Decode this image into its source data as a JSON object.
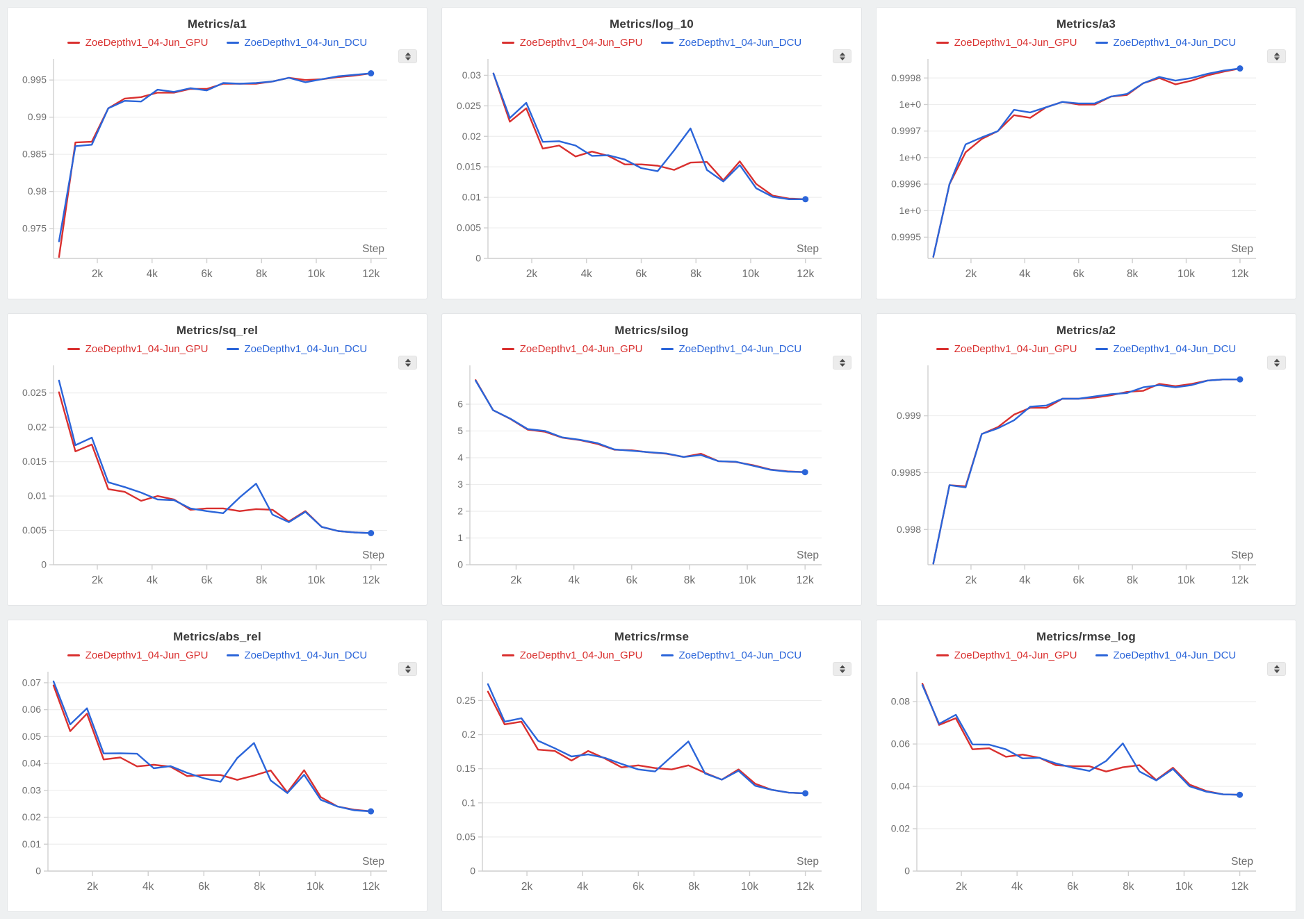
{
  "app": {
    "background": "#eef0f1",
    "panel_background": "#ffffff"
  },
  "colors": {
    "gpu": "#d9302f",
    "dcu": "#2b65d9",
    "grid_line": "#ededed",
    "axis_line": "#cfcfcf",
    "tick_label": "#6e6e6e",
    "title": "#3a3a3a",
    "sorter_glyph": "#4a4a4a",
    "sorter_bg": "#ececec"
  },
  "icons": {
    "panel_handle": "up-down-arrows-icon"
  },
  "legend": {
    "items": [
      {
        "key": "gpu",
        "label": "ZoeDepthv1_04-Jun_GPU",
        "color": "#d9302f"
      },
      {
        "key": "dcu",
        "label": "ZoeDepthv1_04-Jun_DCU",
        "color": "#2b65d9"
      }
    ]
  },
  "xaxis": {
    "label": "Step",
    "range": [
      400,
      12260
    ],
    "tick_values": [
      2000,
      4000,
      6000,
      8000,
      10000,
      12000
    ],
    "tick_labels": [
      "2k",
      "4k",
      "6k",
      "8k",
      "10k",
      "12k"
    ]
  },
  "steps": [
    600,
    1200,
    1800,
    2400,
    3000,
    3600,
    4200,
    4800,
    5400,
    6000,
    6600,
    7200,
    7800,
    8400,
    9000,
    9600,
    10200,
    10800,
    11400,
    12000
  ],
  "chart_data": [
    {
      "type": "line",
      "title": "Metrics/a1",
      "xlabel": "Step",
      "grid": "horizontal",
      "legend_position": "top",
      "ylim": [
        0.971,
        0.9967
      ],
      "ytick_values": [
        0.975,
        0.98,
        0.985,
        0.99,
        0.995
      ],
      "ytick_labels": [
        "0.975",
        "0.98",
        "0.985",
        "0.99",
        "0.995"
      ],
      "series": [
        {
          "name": "ZoeDepthv1_04-Jun_GPU",
          "color": "#d9302f",
          "values": [
            0.9712,
            0.9866,
            0.9867,
            0.9912,
            0.9925,
            0.9927,
            0.9933,
            0.9933,
            0.9938,
            0.9938,
            0.9945,
            0.9945,
            0.9945,
            0.9948,
            0.9953,
            0.995,
            0.9951,
            0.9954,
            0.9956,
            0.9959
          ]
        },
        {
          "name": "ZoeDepthv1_04-Jun_DCU",
          "color": "#2b65d9",
          "values": [
            0.9733,
            0.9861,
            0.9863,
            0.9912,
            0.9922,
            0.9921,
            0.9937,
            0.9934,
            0.9939,
            0.9936,
            0.9946,
            0.9945,
            0.9946,
            0.9948,
            0.9953,
            0.9947,
            0.9951,
            0.9955,
            0.9957,
            0.9959
          ]
        }
      ],
      "end_dot_color": "#2b65d9"
    },
    {
      "type": "line",
      "title": "Metrics/log_10",
      "xlabel": "Step",
      "grid": "horizontal",
      "legend_position": "top",
      "ylim": [
        0,
        0.0313
      ],
      "ytick_values": [
        0,
        0.005,
        0.01,
        0.015,
        0.02,
        0.025,
        0.03
      ],
      "ytick_labels": [
        "0",
        "0.005",
        "0.01",
        "0.015",
        "0.02",
        "0.025",
        "0.03"
      ],
      "series": [
        {
          "name": "ZoeDepthv1_04-Jun_GPU",
          "color": "#d9302f",
          "values": [
            0.0303,
            0.0224,
            0.0246,
            0.018,
            0.0185,
            0.0167,
            0.0175,
            0.0168,
            0.0154,
            0.0154,
            0.0152,
            0.0145,
            0.0157,
            0.0158,
            0.0128,
            0.0159,
            0.0122,
            0.0103,
            0.0098,
            0.0097
          ]
        },
        {
          "name": "ZoeDepthv1_04-Jun_DCU",
          "color": "#2b65d9",
          "values": [
            0.0303,
            0.023,
            0.0255,
            0.0191,
            0.0192,
            0.0185,
            0.0168,
            0.0169,
            0.0162,
            0.0148,
            0.0143,
            0.0177,
            0.0213,
            0.0145,
            0.0126,
            0.0153,
            0.0115,
            0.0101,
            0.0097,
            0.0097
          ]
        }
      ],
      "end_dot_color": "#2b65d9"
    },
    {
      "type": "line",
      "title": "Metrics/a3",
      "xlabel": "Step",
      "grid": "horizontal",
      "legend_position": "top",
      "ylim": [
        0.99946,
        0.99982
      ],
      "ytick_values": [
        0.9995,
        0.99955,
        0.9996,
        0.99965,
        0.9997,
        0.99975,
        0.9998
      ],
      "ytick_labels": [
        "0.9995",
        "1e+0",
        "0.9996",
        "1e+0",
        "0.9997",
        "1e+0",
        "0.9998"
      ],
      "series": [
        {
          "name": "ZoeDepthv1_04-Jun_GPU",
          "color": "#d9302f",
          "values": [
            0.999463,
            0.9996,
            0.99966,
            0.999685,
            0.9997,
            0.99973,
            0.999725,
            0.999745,
            0.999755,
            0.99975,
            0.99975,
            0.999765,
            0.999768,
            0.99979,
            0.9998,
            0.999788,
            0.999795,
            0.999805,
            0.999812,
            0.999818
          ]
        },
        {
          "name": "ZoeDepthv1_04-Jun_DCU",
          "color": "#2b65d9",
          "values": [
            0.999463,
            0.9996,
            0.999675,
            0.999688,
            0.9997,
            0.99974,
            0.999735,
            0.999745,
            0.999755,
            0.999752,
            0.999752,
            0.999765,
            0.99977,
            0.99979,
            0.999802,
            0.999795,
            0.9998,
            0.999808,
            0.999814,
            0.999818
          ]
        }
      ],
      "end_dot_color": "#2b65d9"
    },
    {
      "type": "line",
      "title": "Metrics/sq_rel",
      "xlabel": "Step",
      "grid": "horizontal",
      "legend_position": "top",
      "ylim": [
        0,
        0.0278
      ],
      "ytick_values": [
        0,
        0.005,
        0.01,
        0.015,
        0.02,
        0.025
      ],
      "ytick_labels": [
        "0",
        "0.005",
        "0.01",
        "0.015",
        "0.02",
        "0.025"
      ],
      "series": [
        {
          "name": "ZoeDepthv1_04-Jun_GPU",
          "color": "#d9302f",
          "values": [
            0.0251,
            0.0165,
            0.0175,
            0.011,
            0.0106,
            0.0093,
            0.01,
            0.0095,
            0.008,
            0.0082,
            0.0082,
            0.0078,
            0.0081,
            0.008,
            0.0063,
            0.0078,
            0.0055,
            0.0049,
            0.0047,
            0.0046
          ]
        },
        {
          "name": "ZoeDepthv1_04-Jun_DCU",
          "color": "#2b65d9",
          "values": [
            0.0268,
            0.0174,
            0.0185,
            0.012,
            0.0113,
            0.0105,
            0.0095,
            0.0094,
            0.0082,
            0.0078,
            0.0075,
            0.0098,
            0.0118,
            0.0073,
            0.0062,
            0.0077,
            0.0055,
            0.0049,
            0.0047,
            0.0046
          ]
        }
      ],
      "end_dot_color": "#2b65d9"
    },
    {
      "type": "line",
      "title": "Metrics/silog",
      "xlabel": "Step",
      "grid": "horizontal",
      "legend_position": "top",
      "ylim": [
        0,
        7.14
      ],
      "ytick_values": [
        0,
        1,
        2,
        3,
        4,
        5,
        6
      ],
      "ytick_labels": [
        "0",
        "1",
        "2",
        "3",
        "4",
        "5",
        "6"
      ],
      "series": [
        {
          "name": "ZoeDepthv1_04-Jun_GPU",
          "color": "#d9302f",
          "values": [
            6.9,
            5.78,
            5.45,
            5.05,
            4.97,
            4.75,
            4.66,
            4.52,
            4.3,
            4.28,
            4.2,
            4.15,
            4.03,
            4.15,
            3.87,
            3.84,
            3.72,
            3.56,
            3.49,
            3.46
          ]
        },
        {
          "name": "ZoeDepthv1_04-Jun_DCU",
          "color": "#2b65d9",
          "values": [
            6.88,
            5.78,
            5.46,
            5.07,
            5.0,
            4.76,
            4.67,
            4.55,
            4.31,
            4.26,
            4.21,
            4.16,
            4.03,
            4.1,
            3.87,
            3.85,
            3.7,
            3.55,
            3.48,
            3.46
          ]
        }
      ],
      "end_dot_color": "#2b65d9"
    },
    {
      "type": "line",
      "title": "Metrics/a2",
      "xlabel": "Step",
      "grid": "horizontal",
      "legend_position": "top",
      "ylim": [
        0.99769,
        0.99937
      ],
      "ytick_values": [
        0.998,
        0.9985,
        0.999
      ],
      "ytick_labels": [
        "0.998",
        "0.9985",
        "0.999"
      ],
      "series": [
        {
          "name": "ZoeDepthv1_04-Jun_GPU",
          "color": "#d9302f",
          "values": [
            0.9977,
            0.99839,
            0.99838,
            0.99884,
            0.9989,
            0.99901,
            0.99907,
            0.99907,
            0.99915,
            0.99915,
            0.99916,
            0.99918,
            0.99921,
            0.99922,
            0.99928,
            0.99926,
            0.99928,
            0.99931,
            0.99932,
            0.99932
          ]
        },
        {
          "name": "ZoeDepthv1_04-Jun_DCU",
          "color": "#2b65d9",
          "values": [
            0.9977,
            0.99839,
            0.99837,
            0.99884,
            0.99889,
            0.99896,
            0.99908,
            0.99909,
            0.99915,
            0.99915,
            0.99917,
            0.99919,
            0.9992,
            0.99925,
            0.99927,
            0.99925,
            0.99927,
            0.99931,
            0.99932,
            0.99932
          ]
        }
      ],
      "end_dot_color": "#2b65d9"
    },
    {
      "type": "line",
      "title": "Metrics/abs_rel",
      "xlabel": "Step",
      "grid": "horizontal",
      "legend_position": "top",
      "ylim": [
        0,
        0.071
      ],
      "ytick_values": [
        0,
        0.01,
        0.02,
        0.03,
        0.04,
        0.05,
        0.06,
        0.07
      ],
      "ytick_labels": [
        "0",
        "0.01",
        "0.02",
        "0.03",
        "0.04",
        "0.05",
        "0.06",
        "0.07"
      ],
      "series": [
        {
          "name": "ZoeDepthv1_04-Jun_GPU",
          "color": "#d9302f",
          "values": [
            0.069,
            0.052,
            0.0585,
            0.0415,
            0.0422,
            0.0389,
            0.0395,
            0.0388,
            0.0353,
            0.0357,
            0.0357,
            0.0339,
            0.0355,
            0.0374,
            0.0292,
            0.0375,
            0.0275,
            0.024,
            0.0228,
            0.0222
          ]
        },
        {
          "name": "ZoeDepthv1_04-Jun_DCU",
          "color": "#2b65d9",
          "values": [
            0.0705,
            0.0545,
            0.0605,
            0.0437,
            0.0438,
            0.0436,
            0.0382,
            0.039,
            0.0365,
            0.0345,
            0.0332,
            0.042,
            0.0476,
            0.0337,
            0.029,
            0.0358,
            0.0265,
            0.024,
            0.0226,
            0.0222
          ]
        }
      ],
      "end_dot_color": "#2b65d9"
    },
    {
      "type": "line",
      "title": "Metrics/rmse",
      "xlabel": "Step",
      "grid": "horizontal",
      "legend_position": "top",
      "ylim": [
        0,
        0.28
      ],
      "ytick_values": [
        0,
        0.05,
        0.1,
        0.15,
        0.2,
        0.25
      ],
      "ytick_labels": [
        "0",
        "0.05",
        "0.1",
        "0.15",
        "0.2",
        "0.25"
      ],
      "series": [
        {
          "name": "ZoeDepthv1_04-Jun_GPU",
          "color": "#d9302f",
          "values": [
            0.263,
            0.215,
            0.219,
            0.178,
            0.176,
            0.162,
            0.176,
            0.165,
            0.152,
            0.155,
            0.151,
            0.149,
            0.155,
            0.144,
            0.134,
            0.149,
            0.128,
            0.119,
            0.115,
            0.114
          ]
        },
        {
          "name": "ZoeDepthv1_04-Jun_DCU",
          "color": "#2b65d9",
          "values": [
            0.274,
            0.219,
            0.224,
            0.191,
            0.18,
            0.168,
            0.171,
            0.166,
            0.157,
            0.149,
            0.146,
            0.168,
            0.19,
            0.143,
            0.134,
            0.147,
            0.125,
            0.119,
            0.115,
            0.114
          ]
        }
      ],
      "end_dot_color": "#2b65d9"
    },
    {
      "type": "line",
      "title": "Metrics/rmse_log",
      "xlabel": "Step",
      "grid": "horizontal",
      "legend_position": "top",
      "ylim": [
        0,
        0.0902
      ],
      "ytick_values": [
        0,
        0.02,
        0.04,
        0.06,
        0.08
      ],
      "ytick_labels": [
        "0",
        "0.02",
        "0.04",
        "0.06",
        "0.08"
      ],
      "series": [
        {
          "name": "ZoeDepthv1_04-Jun_GPU",
          "color": "#d9302f",
          "values": [
            0.0885,
            0.069,
            0.0722,
            0.0575,
            0.058,
            0.054,
            0.055,
            0.0535,
            0.05,
            0.0495,
            0.0495,
            0.047,
            0.049,
            0.05,
            0.043,
            0.0488,
            0.0408,
            0.0378,
            0.0362,
            0.036
          ]
        },
        {
          "name": "ZoeDepthv1_04-Jun_DCU",
          "color": "#2b65d9",
          "values": [
            0.0878,
            0.0695,
            0.0738,
            0.0598,
            0.0597,
            0.0575,
            0.0532,
            0.0535,
            0.0508,
            0.0488,
            0.0473,
            0.052,
            0.0603,
            0.047,
            0.0428,
            0.0482,
            0.04,
            0.0375,
            0.0362,
            0.036
          ]
        }
      ],
      "end_dot_color": "#2b65d9"
    }
  ]
}
